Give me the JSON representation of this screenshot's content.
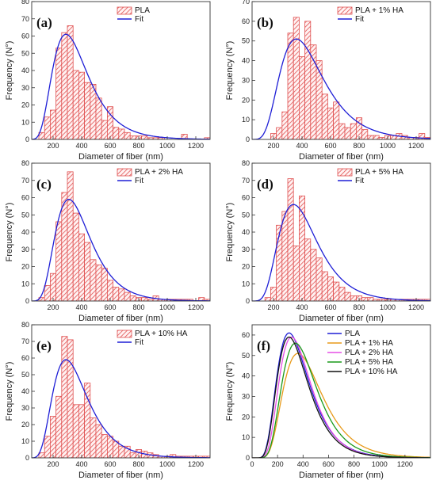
{
  "chart_data": [
    {
      "type": "bar",
      "panel_letter": "(a)",
      "legend_position": "top-right",
      "xlabel": "Diameter of fiber (nm)",
      "ylabel": "Frequency (N°)",
      "xlim": [
        50,
        1300
      ],
      "ylim": [
        0,
        80
      ],
      "xticks": [
        200,
        400,
        600,
        800,
        1000,
        1200
      ],
      "yticks": [
        0,
        10,
        20,
        30,
        40,
        50,
        60,
        70,
        80
      ],
      "bin_width": 40,
      "bin_centers": [
        120,
        160,
        200,
        240,
        280,
        320,
        360,
        400,
        440,
        480,
        520,
        560,
        600,
        640,
        680,
        720,
        760,
        800,
        840,
        880,
        920,
        960,
        1000,
        1040,
        1080,
        1120,
        1160,
        1200,
        1240,
        1280
      ],
      "values": [
        4,
        13,
        17,
        53,
        62,
        66,
        40,
        39,
        33,
        32,
        24,
        11,
        19,
        7,
        6,
        4,
        2,
        2,
        2,
        1,
        1,
        1,
        0,
        0,
        0,
        3,
        0,
        0,
        0,
        1
      ],
      "fit": {
        "name": "Fit",
        "peak_x": 290,
        "peak_y": 61,
        "sigma": 0.43
      },
      "series": [
        {
          "name": "PLA",
          "kind": "histogram",
          "color": "#e05050"
        },
        {
          "name": "Fit",
          "kind": "line",
          "color": "#1f1fd6"
        }
      ]
    },
    {
      "type": "bar",
      "panel_letter": "(b)",
      "legend_position": "top-right",
      "xlabel": "Diameter of fiber (nm)",
      "ylabel": "Frequency (N°)",
      "xlim": [
        50,
        1300
      ],
      "ylim": [
        0,
        70
      ],
      "xticks": [
        200,
        400,
        600,
        800,
        1000,
        1200
      ],
      "yticks": [
        0,
        10,
        20,
        30,
        40,
        50,
        60,
        70
      ],
      "bin_width": 40,
      "bin_centers": [
        200,
        240,
        280,
        320,
        360,
        400,
        440,
        480,
        520,
        560,
        600,
        640,
        680,
        720,
        760,
        800,
        840,
        880,
        920,
        960,
        1000,
        1040,
        1080,
        1120,
        1160,
        1200,
        1240,
        1280
      ],
      "values": [
        3,
        6,
        14,
        54,
        62,
        42,
        60,
        48,
        40,
        23,
        16,
        19,
        8,
        6,
        8,
        11,
        5,
        2,
        2,
        1,
        2,
        2,
        3,
        2,
        1,
        1,
        3,
        1
      ],
      "fit": {
        "name": "Fit",
        "peak_x": 360,
        "peak_y": 51,
        "sigma": 0.42
      },
      "series": [
        {
          "name": "PLA + 1% HA",
          "kind": "histogram",
          "color": "#e05050"
        },
        {
          "name": "Fit",
          "kind": "line",
          "color": "#1f1fd6"
        }
      ]
    },
    {
      "type": "bar",
      "panel_letter": "(c)",
      "legend_position": "top-right",
      "xlabel": "Diameter of fiber (nm)",
      "ylabel": "Frequency (N°)",
      "xlim": [
        50,
        1300
      ],
      "ylim": [
        0,
        80
      ],
      "xticks": [
        200,
        400,
        600,
        800,
        1000,
        1200
      ],
      "yticks": [
        0,
        10,
        20,
        30,
        40,
        50,
        60,
        70,
        80
      ],
      "bin_width": 40,
      "bin_centers": [
        120,
        160,
        200,
        240,
        280,
        320,
        360,
        400,
        440,
        480,
        520,
        560,
        600,
        640,
        680,
        720,
        760,
        800,
        840,
        880,
        920,
        960,
        1000,
        1040,
        1080,
        1120,
        1160,
        1200,
        1240,
        1280
      ],
      "values": [
        2,
        9,
        16,
        46,
        63,
        75,
        51,
        39,
        34,
        24,
        21,
        19,
        12,
        8,
        7,
        5,
        3,
        2,
        2,
        1,
        3,
        1,
        1,
        1,
        1,
        1,
        1,
        0,
        2,
        1
      ],
      "fit": {
        "name": "Fit",
        "peak_x": 310,
        "peak_y": 59,
        "sigma": 0.4
      },
      "series": [
        {
          "name": "PLA + 2% HA",
          "kind": "histogram",
          "color": "#e05050"
        },
        {
          "name": "Fit",
          "kind": "line",
          "color": "#1f1fd6"
        }
      ]
    },
    {
      "type": "bar",
      "panel_letter": "(d)",
      "legend_position": "top-right",
      "xlabel": "Diameter of fiber (nm)",
      "ylabel": "Frequency (N°)",
      "xlim": [
        50,
        1300
      ],
      "ylim": [
        0,
        80
      ],
      "xticks": [
        200,
        400,
        600,
        800,
        1000,
        1200
      ],
      "yticks": [
        0,
        10,
        20,
        30,
        40,
        50,
        60,
        70,
        80
      ],
      "bin_width": 40,
      "bin_centers": [
        160,
        200,
        240,
        280,
        320,
        360,
        400,
        440,
        480,
        520,
        560,
        600,
        640,
        680,
        720,
        760,
        800,
        840,
        880,
        920,
        960,
        1000,
        1040,
        1080,
        1120,
        1160,
        1200,
        1240,
        1280
      ],
      "values": [
        2,
        8,
        44,
        52,
        71,
        32,
        61,
        36,
        30,
        25,
        17,
        14,
        11,
        8,
        5,
        3,
        3,
        2,
        2,
        1,
        1,
        1,
        1,
        1,
        1,
        1,
        1,
        1,
        1
      ],
      "fit": {
        "name": "Fit",
        "peak_x": 340,
        "peak_y": 56,
        "sigma": 0.4
      },
      "series": [
        {
          "name": "PLA + 5% HA",
          "kind": "histogram",
          "color": "#e05050"
        },
        {
          "name": "Fit",
          "kind": "line",
          "color": "#1f1fd6"
        }
      ]
    },
    {
      "type": "bar",
      "panel_letter": "(e)",
      "legend_position": "top-right",
      "xlabel": "Diameter of fiber (nm)",
      "ylabel": "Frequency (N°)",
      "xlim": [
        50,
        1300
      ],
      "ylim": [
        0,
        80
      ],
      "xticks": [
        200,
        400,
        600,
        800,
        1000,
        1200
      ],
      "yticks": [
        0,
        10,
        20,
        30,
        40,
        50,
        60,
        70,
        80
      ],
      "bin_width": 40,
      "bin_centers": [
        120,
        160,
        200,
        240,
        280,
        320,
        360,
        400,
        440,
        480,
        520,
        560,
        600,
        640,
        680,
        720,
        760,
        800,
        840,
        880,
        920,
        960,
        1000,
        1040,
        1080,
        1120,
        1160,
        1200,
        1240,
        1280
      ],
      "values": [
        3,
        13,
        25,
        37,
        73,
        71,
        32,
        32,
        45,
        24,
        20,
        14,
        13,
        10,
        7,
        7,
        3,
        5,
        4,
        3,
        2,
        1,
        1,
        2,
        1,
        1,
        1,
        1,
        1,
        1
      ],
      "fit": {
        "name": "Fit",
        "peak_x": 290,
        "peak_y": 59,
        "sigma": 0.42
      },
      "series": [
        {
          "name": "PLA + 10% HA",
          "kind": "histogram",
          "color": "#e05050"
        },
        {
          "name": "Fit",
          "kind": "line",
          "color": "#1f1fd6"
        }
      ]
    },
    {
      "type": "line",
      "panel_letter": "(f)",
      "legend_position": "top-right",
      "xlabel": "Diameter of fiber (nm)",
      "ylabel": "Frequency (N°)",
      "xlim": [
        0,
        1400
      ],
      "ylim": [
        0,
        65
      ],
      "xticks": [
        0,
        200,
        400,
        600,
        800,
        1000,
        1200
      ],
      "yticks": [
        0,
        10,
        20,
        30,
        40,
        50,
        60
      ],
      "series": [
        {
          "name": "PLA",
          "color": "#1f1fd6",
          "peak_x": 290,
          "peak_y": 61,
          "sigma": 0.43
        },
        {
          "name": "PLA + 1%  HA",
          "color": "#e89a1a",
          "peak_x": 360,
          "peak_y": 51,
          "sigma": 0.42
        },
        {
          "name": "PLA + 2%  HA",
          "color": "#e64fe6",
          "peak_x": 310,
          "peak_y": 59,
          "sigma": 0.4
        },
        {
          "name": "PLA + 5%  HA",
          "color": "#1a9a1a",
          "peak_x": 340,
          "peak_y": 56,
          "sigma": 0.4
        },
        {
          "name": "PLA + 10% HA",
          "color": "#111111",
          "peak_x": 290,
          "peak_y": 59,
          "sigma": 0.42
        }
      ]
    }
  ]
}
